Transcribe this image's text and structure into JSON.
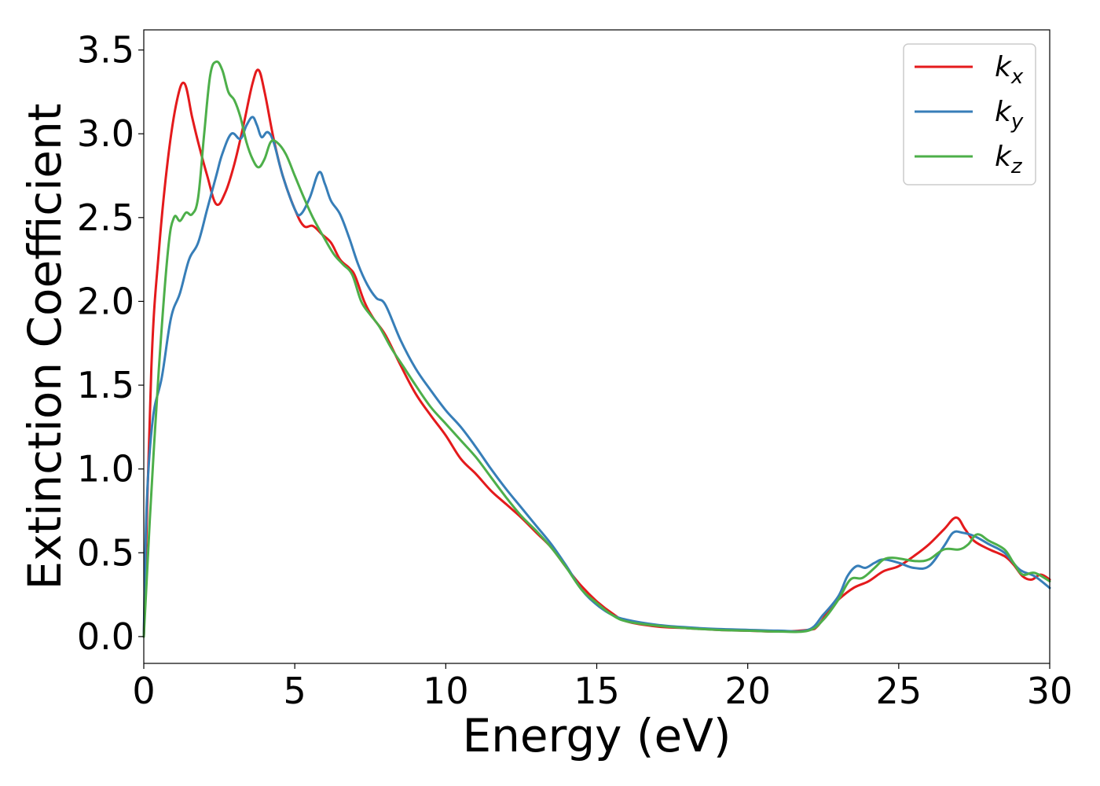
{
  "chart_data": {
    "type": "line",
    "title": "",
    "xlabel": "Energy (eV)",
    "ylabel": "Extinction Coefficient",
    "xlim": [
      0,
      30
    ],
    "ylim": [
      -0.16,
      3.62
    ],
    "xticks": [
      0,
      5,
      10,
      15,
      20,
      25,
      30
    ],
    "xtick_labels": [
      "0",
      "5",
      "10",
      "15",
      "20",
      "25",
      "30"
    ],
    "yticks": [
      0.0,
      0.5,
      1.0,
      1.5,
      2.0,
      2.5,
      3.0,
      3.5
    ],
    "ytick_labels": [
      "0.0",
      "0.5",
      "1.0",
      "1.5",
      "2.0",
      "2.5",
      "3.0",
      "3.5"
    ],
    "grid": false,
    "legend_position": "top-right",
    "series": [
      {
        "name": "k_x",
        "base": "k",
        "sub": "x",
        "color": "#e41a1c",
        "x": [
          0,
          0.25,
          0.5,
          0.8,
          1.1,
          1.35,
          1.6,
          1.8,
          2.1,
          2.4,
          2.7,
          3.0,
          3.3,
          3.6,
          3.8,
          4.0,
          4.3,
          4.6,
          5.0,
          5.3,
          5.6,
          5.9,
          6.2,
          6.5,
          6.8,
          7.0,
          7.3,
          7.6,
          8.0,
          8.5,
          9.0,
          9.5,
          10.0,
          10.5,
          11.0,
          11.5,
          12.0,
          12.5,
          13.0,
          13.5,
          14.0,
          14.5,
          15.0,
          15.5,
          16.0,
          17.0,
          18.0,
          19.0,
          20.0,
          21.0,
          22.0,
          22.3,
          22.7,
          23.0,
          23.5,
          24.0,
          24.5,
          25.0,
          25.5,
          26.0,
          26.5,
          26.9,
          27.2,
          27.5,
          28.0,
          28.5,
          28.8,
          29.1,
          29.4,
          29.7,
          30.0
        ],
        "y": [
          0.0,
          1.6,
          2.3,
          2.85,
          3.2,
          3.3,
          3.1,
          2.95,
          2.75,
          2.58,
          2.65,
          2.82,
          3.05,
          3.3,
          3.38,
          3.25,
          2.97,
          2.75,
          2.55,
          2.45,
          2.45,
          2.4,
          2.35,
          2.25,
          2.2,
          2.15,
          2.0,
          1.9,
          1.8,
          1.62,
          1.45,
          1.32,
          1.2,
          1.06,
          0.97,
          0.87,
          0.79,
          0.71,
          0.62,
          0.53,
          0.41,
          0.3,
          0.21,
          0.14,
          0.09,
          0.06,
          0.05,
          0.04,
          0.035,
          0.03,
          0.04,
          0.06,
          0.16,
          0.22,
          0.29,
          0.33,
          0.39,
          0.42,
          0.48,
          0.55,
          0.64,
          0.71,
          0.64,
          0.57,
          0.52,
          0.48,
          0.43,
          0.36,
          0.34,
          0.37,
          0.34
        ]
      },
      {
        "name": "k_y",
        "base": "k",
        "sub": "y",
        "color": "#377eb8",
        "x": [
          0,
          0.1,
          0.3,
          0.6,
          0.9,
          1.2,
          1.5,
          1.8,
          2.1,
          2.4,
          2.6,
          2.9,
          3.2,
          3.4,
          3.6,
          3.75,
          3.9,
          4.1,
          4.3,
          4.6,
          5.0,
          5.2,
          5.5,
          5.8,
          6.0,
          6.2,
          6.5,
          6.8,
          7.1,
          7.4,
          7.7,
          8.0,
          8.5,
          9.0,
          9.5,
          10.0,
          10.5,
          11.0,
          11.5,
          12.0,
          12.5,
          13.0,
          13.5,
          14.0,
          14.5,
          15.0,
          15.5,
          16.0,
          17.0,
          18.0,
          19.0,
          20.0,
          21.0,
          22.0,
          22.5,
          23.0,
          23.3,
          23.6,
          23.9,
          24.2,
          24.5,
          25.0,
          25.5,
          26.0,
          26.5,
          26.8,
          27.1,
          27.5,
          28.0,
          28.5,
          29.0,
          29.5,
          30.0
        ],
        "y": [
          0.0,
          0.8,
          1.3,
          1.55,
          1.9,
          2.05,
          2.25,
          2.35,
          2.55,
          2.75,
          2.88,
          3.0,
          2.97,
          3.05,
          3.1,
          3.05,
          2.98,
          3.01,
          2.95,
          2.75,
          2.55,
          2.52,
          2.62,
          2.77,
          2.7,
          2.6,
          2.52,
          2.38,
          2.22,
          2.1,
          2.02,
          1.98,
          1.77,
          1.6,
          1.47,
          1.35,
          1.25,
          1.13,
          1.0,
          0.88,
          0.77,
          0.66,
          0.55,
          0.42,
          0.28,
          0.19,
          0.13,
          0.1,
          0.07,
          0.055,
          0.045,
          0.04,
          0.035,
          0.04,
          0.13,
          0.24,
          0.36,
          0.42,
          0.41,
          0.44,
          0.46,
          0.44,
          0.41,
          0.42,
          0.54,
          0.62,
          0.62,
          0.6,
          0.55,
          0.5,
          0.4,
          0.36,
          0.29
        ]
      },
      {
        "name": "k_z",
        "base": "k",
        "sub": "z",
        "color": "#4daf4a",
        "x": [
          0,
          0.2,
          0.5,
          0.8,
          1.0,
          1.2,
          1.4,
          1.6,
          1.8,
          2.0,
          2.2,
          2.4,
          2.6,
          2.8,
          3.0,
          3.2,
          3.4,
          3.6,
          3.8,
          4.0,
          4.2,
          4.4,
          4.7,
          5.0,
          5.3,
          5.6,
          6.0,
          6.3,
          6.6,
          6.9,
          7.2,
          7.5,
          7.8,
          8.2,
          8.6,
          9.0,
          9.5,
          10.0,
          10.5,
          11.0,
          11.5,
          12.0,
          12.5,
          13.0,
          13.5,
          14.0,
          14.5,
          15.0,
          15.5,
          16.0,
          17.0,
          18.0,
          19.0,
          20.0,
          21.0,
          22.0,
          22.5,
          23.0,
          23.4,
          23.8,
          24.2,
          24.5,
          24.8,
          25.2,
          25.6,
          26.0,
          26.5,
          27.0,
          27.3,
          27.6,
          28.0,
          28.5,
          28.8,
          29.1,
          29.5,
          30.0
        ],
        "y": [
          0.0,
          0.7,
          1.6,
          2.3,
          2.5,
          2.48,
          2.53,
          2.52,
          2.62,
          3.0,
          3.35,
          3.43,
          3.38,
          3.25,
          3.2,
          3.1,
          2.95,
          2.85,
          2.8,
          2.85,
          2.95,
          2.95,
          2.88,
          2.75,
          2.62,
          2.5,
          2.37,
          2.28,
          2.22,
          2.16,
          2.0,
          1.92,
          1.85,
          1.72,
          1.61,
          1.5,
          1.37,
          1.27,
          1.17,
          1.07,
          0.95,
          0.83,
          0.72,
          0.63,
          0.53,
          0.41,
          0.28,
          0.2,
          0.13,
          0.09,
          0.065,
          0.05,
          0.04,
          0.035,
          0.03,
          0.035,
          0.1,
          0.22,
          0.34,
          0.35,
          0.41,
          0.46,
          0.47,
          0.46,
          0.45,
          0.46,
          0.52,
          0.52,
          0.55,
          0.61,
          0.57,
          0.52,
          0.44,
          0.37,
          0.38,
          0.33
        ]
      }
    ]
  }
}
